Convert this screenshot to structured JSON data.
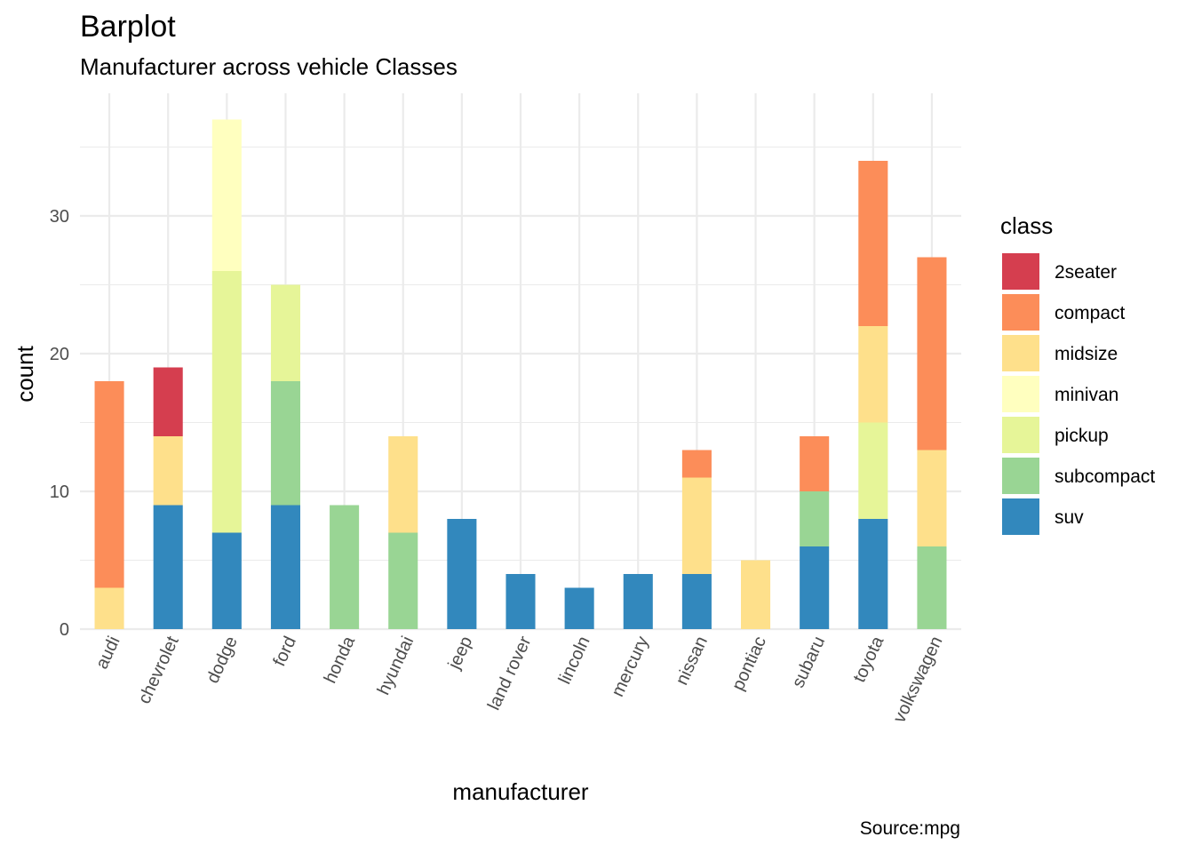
{
  "chart_data": {
    "type": "bar",
    "stacked": true,
    "title": "Barplot",
    "subtitle": "Manufacturer across vehicle Classes",
    "xlabel": "manufacturer",
    "ylabel": "count",
    "caption": "Source:mpg",
    "ylim": [
      0,
      38
    ],
    "yticks": [
      0,
      10,
      20,
      30
    ],
    "grid": true,
    "legend": {
      "title": "class",
      "position": "right"
    },
    "categories": [
      "audi",
      "chevrolet",
      "dodge",
      "ford",
      "honda",
      "hyundai",
      "jeep",
      "land rover",
      "lincoln",
      "mercury",
      "nissan",
      "pontiac",
      "subaru",
      "toyota",
      "volkswagen"
    ],
    "series": [
      {
        "name": "2seater",
        "color": "#D53E4F",
        "values": [
          0,
          5,
          0,
          0,
          0,
          0,
          0,
          0,
          0,
          0,
          0,
          0,
          0,
          0,
          0
        ]
      },
      {
        "name": "compact",
        "color": "#FC8D59",
        "values": [
          15,
          0,
          0,
          0,
          0,
          0,
          0,
          0,
          0,
          0,
          2,
          0,
          4,
          12,
          14
        ]
      },
      {
        "name": "midsize",
        "color": "#FEE08B",
        "values": [
          3,
          5,
          0,
          0,
          0,
          7,
          0,
          0,
          0,
          0,
          7,
          5,
          0,
          7,
          7
        ]
      },
      {
        "name": "minivan",
        "color": "#FFFFBF",
        "values": [
          0,
          0,
          11,
          0,
          0,
          0,
          0,
          0,
          0,
          0,
          0,
          0,
          0,
          0,
          0
        ]
      },
      {
        "name": "pickup",
        "color": "#E6F598",
        "values": [
          0,
          0,
          19,
          7,
          0,
          0,
          0,
          0,
          0,
          0,
          0,
          0,
          0,
          7,
          0
        ]
      },
      {
        "name": "subcompact",
        "color": "#99D594",
        "values": [
          0,
          0,
          0,
          9,
          9,
          7,
          0,
          0,
          0,
          0,
          0,
          0,
          4,
          0,
          6
        ]
      },
      {
        "name": "suv",
        "color": "#3288BD",
        "values": [
          0,
          9,
          7,
          9,
          0,
          0,
          8,
          4,
          3,
          4,
          4,
          0,
          6,
          8,
          0
        ]
      }
    ]
  }
}
